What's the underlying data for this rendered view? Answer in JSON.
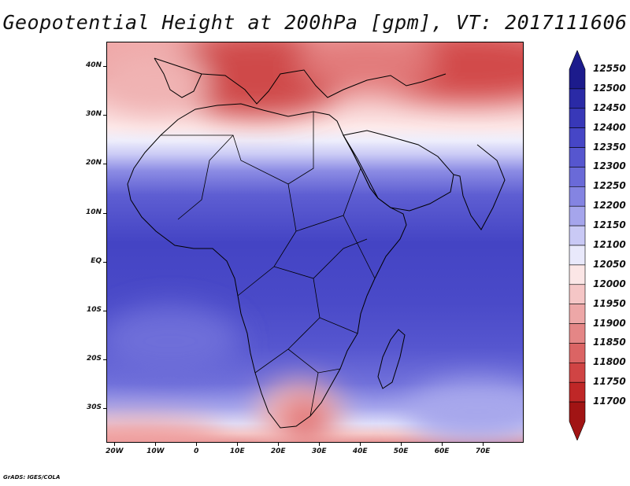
{
  "title": "Geopotential Height at 200hPa [gpm], VT: 2017111606",
  "credit": "GrADS: IGES/COLA",
  "map": {
    "lon_range": [
      -22,
      80
    ],
    "lat_range": [
      -37,
      45
    ],
    "lat_labels": [
      "40N",
      "30N",
      "20N",
      "10N",
      "EQ",
      "10S",
      "20S",
      "30S"
    ],
    "lat_values": [
      40,
      30,
      20,
      10,
      0,
      -10,
      -20,
      -30
    ],
    "lon_labels": [
      "20W",
      "10W",
      "0",
      "10E",
      "20E",
      "30E",
      "40E",
      "50E",
      "60E",
      "70E"
    ],
    "lon_values": [
      -20,
      -10,
      0,
      10,
      20,
      30,
      40,
      50,
      60,
      70
    ]
  },
  "legend": {
    "levels": [
      "12550",
      "12500",
      "12450",
      "12400",
      "12350",
      "12300",
      "12250",
      "12200",
      "12150",
      "12100",
      "12050",
      "12000",
      "11950",
      "11900",
      "11850",
      "11800",
      "11750",
      "11700"
    ],
    "colors": [
      "#1c1b8c",
      "#2a2aa6",
      "#3838b8",
      "#4646c6",
      "#5656cf",
      "#6a6ad8",
      "#8484e2",
      "#a5a5ec",
      "#c9c9f5",
      "#e9e9fb",
      "#fbe6e6",
      "#f5c6c6",
      "#eda7a7",
      "#e48686",
      "#db6464",
      "#d04444",
      "#bf2727",
      "#a11414"
    ]
  }
}
